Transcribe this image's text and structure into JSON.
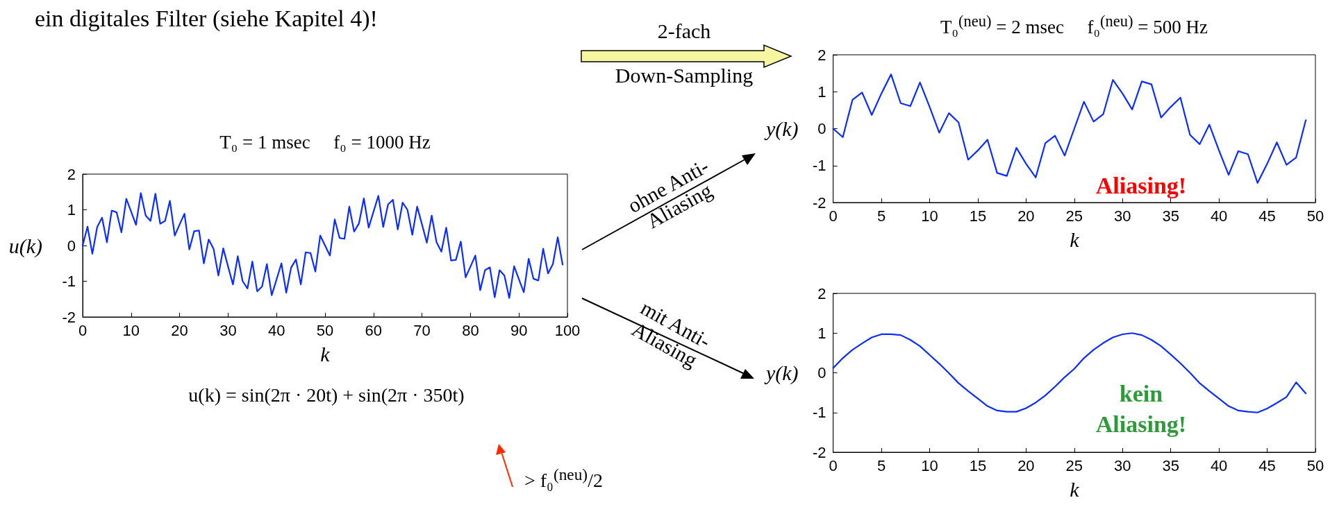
{
  "chart_data": [
    {
      "type": "line",
      "title": "T₀ = 1 msec     f₀ = 1000 Hz",
      "xlabel": "k",
      "ylabel": "u(k)",
      "annotations": [
        "ein digitales Filter (siehe Kapitel 4)!",
        "2-fach",
        "Down-Sampling",
        "u(k) = sin(2π · 20t) + sin(2π · 350t)",
        "> f₀$^{(neu)}$/2"
      ],
      "x": [
        0,
        1,
        2,
        3,
        4,
        5,
        6,
        7,
        8,
        9,
        10,
        11,
        12,
        13,
        14,
        15,
        16,
        17,
        18,
        19,
        20,
        21,
        22,
        23,
        24,
        25,
        26,
        27,
        28,
        29,
        30,
        31,
        32,
        33,
        34,
        35,
        36,
        37,
        38,
        39,
        40,
        41,
        42,
        43,
        44,
        45,
        46,
        47,
        48,
        49,
        50,
        51,
        52,
        53,
        54,
        55,
        56,
        57,
        58,
        59,
        60,
        61,
        62,
        63,
        64,
        65,
        66,
        67,
        68,
        69,
        70,
        71,
        72,
        73,
        74,
        75,
        76,
        77,
        78,
        79,
        80,
        81,
        82,
        83,
        84,
        85,
        86,
        87,
        88,
        89,
        90,
        91,
        92,
        93,
        94,
        95,
        96,
        97,
        98,
        99
      ],
      "series": [
        {
          "color": "#0a2cff",
          "values": [
            0,
            0.53,
            -0.23,
            0.52,
            0.78,
            0.09,
            0.98,
            0.93,
            0.37,
            1.31,
            0.95,
            0.58,
            1.47,
            0.84,
            0.69,
            1.45,
            0.61,
            0.69,
            1.25,
            0.28,
            0.59,
            0.89,
            -0.11,
            0.4,
            0.42,
            -0.5,
            0.17,
            -0.09,
            -0.84,
            -0.08,
            -0.59,
            -1.09,
            -0.3,
            -1.0,
            -1.2,
            -0.45,
            -1.28,
            -1.15,
            -0.52,
            -1.39,
            -0.95,
            -0.5,
            -1.32,
            -0.62,
            -0.39,
            -1.09,
            -0.19,
            -0.21,
            -0.73,
            0.28,
            0,
            -0.28,
            0.73,
            0.21,
            0.19,
            1.09,
            0.39,
            0.62,
            1.32,
            0.5,
            0.95,
            1.39,
            0.52,
            1.15,
            1.28,
            0.45,
            1.2,
            1.0,
            0.3,
            1.09,
            0.59,
            0.08,
            0.84,
            0.09,
            -0.17,
            0.5,
            -0.42,
            -0.4,
            0.11,
            -0.89,
            -0.59,
            -0.28,
            -1.25,
            -0.69,
            -0.61,
            -1.45,
            -0.69,
            -0.84,
            -1.47,
            -0.58,
            -0.95,
            -1.31,
            -0.37,
            -0.93,
            -0.98,
            -0.09,
            -0.78,
            -0.52,
            0.23,
            -0.53
          ]
        }
      ],
      "xlim": [
        0,
        100
      ],
      "xticks": [
        0,
        10,
        20,
        30,
        40,
        50,
        60,
        70,
        80,
        90,
        100
      ],
      "ylim": [
        -2,
        2
      ],
      "yticks": [
        -2,
        -1,
        0,
        1,
        2
      ],
      "grid": false,
      "marker": "none",
      "line_style": "solid"
    },
    {
      "type": "line",
      "title": "T₀$^{(neu)}$ = 2 msec     f₀$^{(neu)}$ = 500 Hz",
      "xlabel": "k",
      "ylabel": "y(k)",
      "annotations": [
        "ohne Anti-\nAliasing",
        "Aliasing!"
      ],
      "x": [
        0,
        1,
        2,
        3,
        4,
        5,
        6,
        7,
        8,
        9,
        10,
        11,
        12,
        13,
        14,
        15,
        16,
        17,
        18,
        19,
        20,
        21,
        22,
        23,
        24,
        25,
        26,
        27,
        28,
        29,
        30,
        31,
        32,
        33,
        34,
        35,
        36,
        37,
        38,
        39,
        40,
        41,
        42,
        43,
        44,
        45,
        46,
        47,
        48,
        49
      ],
      "series": [
        {
          "color": "#0a2cff",
          "values": [
            0,
            -0.23,
            0.78,
            0.98,
            0.37,
            0.95,
            1.47,
            0.69,
            0.61,
            1.25,
            0.59,
            -0.11,
            0.42,
            0.17,
            -0.84,
            -0.59,
            -0.3,
            -1.2,
            -1.28,
            -0.52,
            -0.95,
            -1.32,
            -0.39,
            -0.19,
            -0.73,
            0,
            0.73,
            0.19,
            0.39,
            1.32,
            0.95,
            0.52,
            1.28,
            1.2,
            0.3,
            0.59,
            0.84,
            -0.17,
            -0.42,
            0.11,
            -0.59,
            -1.25,
            -0.61,
            -0.69,
            -1.47,
            -0.95,
            -0.37,
            -0.98,
            -0.78,
            0.23
          ]
        }
      ],
      "xlim": [
        0,
        50
      ],
      "xticks": [
        0,
        5,
        10,
        15,
        20,
        25,
        30,
        35,
        40,
        45,
        50
      ],
      "ylim": [
        -2,
        2
      ],
      "yticks": [
        -2,
        -1,
        0,
        1,
        2
      ],
      "grid": false,
      "marker": "none",
      "line_style": "solid"
    },
    {
      "type": "line",
      "ylabel": "y(k)",
      "xlabel": "k",
      "annotations": [
        "mit Anti-\nAliasing",
        "kein\nAliasing!"
      ],
      "x": [
        0,
        1,
        2,
        3,
        4,
        5,
        6,
        7,
        8,
        9,
        10,
        11,
        12,
        13,
        14,
        15,
        16,
        17,
        18,
        19,
        20,
        21,
        22,
        23,
        24,
        25,
        26,
        27,
        28,
        29,
        30,
        31,
        32,
        33,
        34,
        35,
        36,
        37,
        38,
        39,
        40,
        41,
        42,
        43,
        44,
        45,
        46,
        47,
        48,
        49
      ],
      "series": [
        {
          "color": "#0a2cff",
          "values": [
            0.12,
            0.37,
            0.58,
            0.74,
            0.89,
            0.97,
            0.97,
            0.95,
            0.83,
            0.67,
            0.45,
            0.23,
            -0.01,
            -0.26,
            -0.46,
            -0.65,
            -0.84,
            -0.95,
            -0.98,
            -0.98,
            -0.89,
            -0.75,
            -0.57,
            -0.35,
            -0.11,
            0.1,
            0.37,
            0.58,
            0.75,
            0.89,
            0.97,
            1.0,
            0.95,
            0.83,
            0.67,
            0.46,
            0.24,
            0,
            -0.26,
            -0.46,
            -0.65,
            -0.84,
            -0.95,
            -0.98,
            -1.0,
            -0.9,
            -0.76,
            -0.61,
            -0.24,
            -0.52
          ]
        }
      ],
      "xlim": [
        0,
        50
      ],
      "xticks": [
        0,
        5,
        10,
        15,
        20,
        25,
        30,
        35,
        40,
        45,
        50
      ],
      "ylim": [
        -2,
        2
      ],
      "yticks": [
        -2,
        -1,
        0,
        1,
        2
      ],
      "grid": false,
      "marker": "none",
      "line_style": "solid"
    }
  ]
}
